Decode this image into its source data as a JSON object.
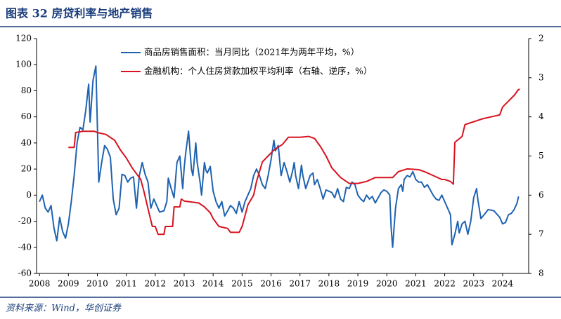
{
  "chart_data": {
    "type": "line",
    "title": "图表 32  房贷利率与地产销售",
    "source": "资料来源：Wind，华创证券",
    "xlim": [
      2007.9,
      2024.9
    ],
    "xticks": [
      2008,
      2009,
      2010,
      2011,
      2012,
      2013,
      2014,
      2015,
      2016,
      2017,
      2018,
      2019,
      2020,
      2021,
      2022,
      2023,
      2024
    ],
    "ylim": [
      -60,
      120
    ],
    "yticks": [
      -60,
      -40,
      -20,
      0,
      20,
      40,
      60,
      80,
      100,
      120
    ],
    "y2lim": [
      8,
      2
    ],
    "y2ticks": [
      2,
      3,
      4,
      5,
      6,
      7,
      8
    ],
    "grid": false,
    "series": [
      {
        "name": "商品房销售面积：当月同比（2021年为两年平均，%）",
        "color": "#1f63b0",
        "x": [
          2008.0,
          2008.1,
          2008.2,
          2008.3,
          2008.4,
          2008.5,
          2008.6,
          2008.7,
          2008.8,
          2008.9,
          2009.0,
          2009.1,
          2009.2,
          2009.3,
          2009.4,
          2009.5,
          2009.6,
          2009.7,
          2009.75,
          2009.85,
          2009.95,
          2010.05,
          2010.15,
          2010.25,
          2010.35,
          2010.45,
          2010.55,
          2010.65,
          2010.75,
          2010.85,
          2010.95,
          2011.05,
          2011.15,
          2011.25,
          2011.35,
          2011.45,
          2011.55,
          2011.65,
          2011.75,
          2011.85,
          2011.95,
          2012.05,
          2012.15,
          2012.3,
          2012.4,
          2012.45,
          2012.55,
          2012.65,
          2012.75,
          2012.85,
          2012.95,
          2013.0,
          2013.05,
          2013.15,
          2013.25,
          2013.3,
          2013.4,
          2013.45,
          2013.55,
          2013.6,
          2013.7,
          2013.75,
          2013.8,
          2013.9,
          2014.0,
          2014.1,
          2014.2,
          2014.3,
          2014.4,
          2014.5,
          2014.6,
          2014.7,
          2014.8,
          2014.9,
          2015.0,
          2015.1,
          2015.2,
          2015.3,
          2015.4,
          2015.5,
          2015.6,
          2015.7,
          2015.8,
          2015.9,
          2016.0,
          2016.1,
          2016.15,
          2016.25,
          2016.35,
          2016.45,
          2016.55,
          2016.65,
          2016.75,
          2016.8,
          2016.85,
          2016.95,
          2017.05,
          2017.1,
          2017.2,
          2017.35,
          2017.45,
          2017.5,
          2017.6,
          2017.7,
          2017.8,
          2017.9,
          2018.0,
          2018.1,
          2018.2,
          2018.3,
          2018.4,
          2018.5,
          2018.6,
          2018.7,
          2018.8,
          2018.9,
          2019.0,
          2019.1,
          2019.2,
          2019.3,
          2019.4,
          2019.5,
          2019.6,
          2019.7,
          2019.8,
          2019.9,
          2020.0,
          2020.1,
          2020.15,
          2020.2,
          2020.3,
          2020.4,
          2020.5,
          2020.55,
          2020.6,
          2020.7,
          2020.8,
          2020.9,
          2021.0,
          2021.1,
          2021.2,
          2021.3,
          2021.4,
          2021.5,
          2021.6,
          2021.7,
          2021.8,
          2021.9,
          2022.0,
          2022.1,
          2022.2,
          2022.25,
          2022.35,
          2022.45,
          2022.5,
          2022.6,
          2022.7,
          2022.8,
          2022.9,
          2023.0,
          2023.1,
          2023.15,
          2023.25,
          2023.4,
          2023.5,
          2023.7,
          2023.9,
          2024.0,
          2024.1,
          2024.2,
          2024.3,
          2024.4,
          2024.5,
          2024.55
        ],
        "values": [
          -5,
          0,
          -10,
          -13,
          -8,
          -25,
          -35,
          -17,
          -28,
          -33,
          -22,
          -5,
          15,
          40,
          52,
          50,
          65,
          85,
          56,
          88,
          99,
          10,
          25,
          38,
          35,
          29,
          -3,
          -15,
          -10,
          16,
          15,
          10,
          13,
          14,
          -10,
          15,
          25,
          16,
          10,
          -10,
          -3,
          -8,
          -13,
          -12,
          -5,
          13,
          5,
          -2,
          25,
          30,
          5,
          21,
          32,
          49,
          20,
          15,
          40,
          25,
          10,
          0,
          25,
          19,
          17,
          22,
          3,
          -5,
          -10,
          -5,
          -16,
          -12,
          -8,
          -10,
          -14,
          -5,
          -13,
          -5,
          0,
          5,
          15,
          20,
          15,
          8,
          5,
          15,
          27,
          42,
          34,
          38,
          15,
          25,
          18,
          10,
          19,
          25,
          15,
          5,
          23,
          15,
          5,
          15,
          17,
          8,
          12,
          5,
          -3,
          4,
          3,
          2,
          -2,
          5,
          -3,
          -5,
          6,
          5,
          10,
          8,
          0,
          -3,
          -5,
          0,
          -3,
          -1,
          -6,
          -2,
          2,
          4,
          3,
          0,
          -25,
          -40,
          -10,
          5,
          8,
          3,
          12,
          15,
          14,
          18,
          12,
          10,
          10,
          6,
          8,
          4,
          0,
          -3,
          -4,
          0,
          -5,
          -10,
          -15,
          -38,
          -30,
          -20,
          -29,
          -22,
          -20,
          -30,
          -20,
          -2,
          5,
          -4,
          -18,
          -14,
          -11,
          -12,
          -17,
          -22,
          -21,
          -15,
          -14,
          -11,
          -6,
          -1
        ]
      },
      {
        "name": "金融机构：个人住房贷款加权平均利率（右轴、逆序，%）",
        "color": "#d7131f",
        "axis": "y2",
        "x": [
          2009.0,
          2009.2,
          2009.25,
          2009.5,
          2009.9,
          2010.0,
          2010.3,
          2010.6,
          2010.8,
          2011.0,
          2011.2,
          2011.5,
          2011.6,
          2011.8,
          2011.9,
          2012.0,
          2012.1,
          2012.3,
          2012.35,
          2012.6,
          2012.65,
          2012.85,
          2012.9,
          2013.0,
          2013.5,
          2013.7,
          2013.9,
          2014.0,
          2014.2,
          2014.5,
          2014.6,
          2014.9,
          2015.0,
          2015.2,
          2015.4,
          2015.5,
          2015.6,
          2015.7,
          2015.9,
          2016.1,
          2016.4,
          2016.6,
          2017.0,
          2017.3,
          2017.5,
          2017.7,
          2017.9,
          2018.1,
          2018.4,
          2018.7,
          2019.0,
          2019.3,
          2019.6,
          2019.9,
          2020.2,
          2020.4,
          2020.7,
          2021.1,
          2021.3,
          2021.6,
          2021.9,
          2022.0,
          2022.2,
          2022.3,
          2022.35,
          2022.6,
          2022.7,
          2022.9,
          2023.1,
          2023.3,
          2023.6,
          2023.9,
          2024.0,
          2024.2,
          2024.4,
          2024.55,
          2024.6
        ],
        "values": [
          4.78,
          4.78,
          4.4,
          4.37,
          4.37,
          4.4,
          4.45,
          4.6,
          4.85,
          5.05,
          5.3,
          5.6,
          5.88,
          6.5,
          6.8,
          6.8,
          7.0,
          7.0,
          6.8,
          6.8,
          6.3,
          6.3,
          6.1,
          6.15,
          6.2,
          6.3,
          6.45,
          6.6,
          6.8,
          6.85,
          6.95,
          6.95,
          6.8,
          6.25,
          6.0,
          5.65,
          5.4,
          5.15,
          5.0,
          4.85,
          4.7,
          4.52,
          4.52,
          4.5,
          4.55,
          4.75,
          5.0,
          5.3,
          5.55,
          5.7,
          5.7,
          5.65,
          5.55,
          5.55,
          5.55,
          5.4,
          5.33,
          5.35,
          5.4,
          5.5,
          5.6,
          5.6,
          5.65,
          5.72,
          4.65,
          4.5,
          4.2,
          4.15,
          4.1,
          4.05,
          4.0,
          3.95,
          3.75,
          3.6,
          3.45,
          3.3,
          3.3
        ]
      }
    ]
  }
}
